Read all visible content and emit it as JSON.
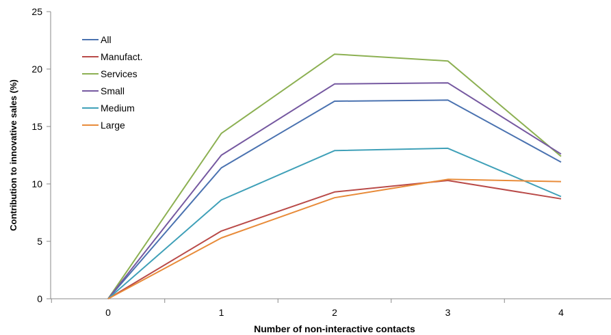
{
  "chart_data": {
    "type": "line",
    "title": "",
    "xlabel": "Number of non-interactive contacts",
    "ylabel": "Contribution to innovative sales (%)",
    "x": [
      0,
      1,
      2,
      3,
      4
    ],
    "x_tick_labels": [
      "0",
      "1",
      "2",
      "3",
      "4"
    ],
    "ylim": [
      0,
      25
    ],
    "y_ticks": [
      0,
      5,
      10,
      15,
      20,
      25
    ],
    "y_tick_labels": [
      "0",
      "5",
      "10",
      "15",
      "20",
      "25"
    ],
    "grid": false,
    "legend_position": "top-left",
    "series": [
      {
        "name": "All",
        "color": "#4a72b0",
        "values": [
          0,
          11.4,
          17.2,
          17.3,
          11.9
        ]
      },
      {
        "name": "Manufact.",
        "color": "#b94a48",
        "values": [
          0,
          5.9,
          9.3,
          10.3,
          8.7
        ]
      },
      {
        "name": "Services",
        "color": "#8cb052",
        "values": [
          0,
          14.4,
          21.3,
          20.7,
          12.4
        ]
      },
      {
        "name": "Small",
        "color": "#7558a0",
        "values": [
          0,
          12.5,
          18.7,
          18.8,
          12.6
        ]
      },
      {
        "name": "Medium",
        "color": "#3fa0b8",
        "values": [
          0,
          8.6,
          12.9,
          13.1,
          8.9
        ]
      },
      {
        "name": "Large",
        "color": "#e88b39",
        "values": [
          0,
          5.3,
          8.8,
          10.4,
          10.2
        ]
      }
    ]
  }
}
